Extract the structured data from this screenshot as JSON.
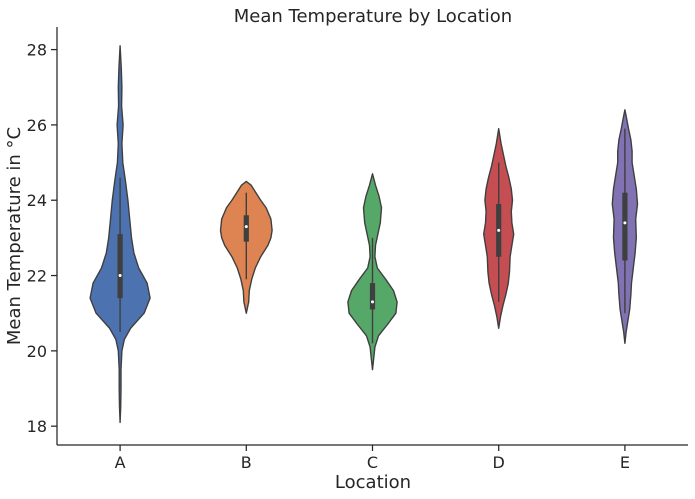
{
  "chart_data": {
    "type": "violin",
    "title": "Mean Temperature by Location",
    "xlabel": "Location",
    "ylabel": "Mean Temperature in °C",
    "categories": [
      "A",
      "B",
      "C",
      "D",
      "E"
    ],
    "ylim": [
      17.5,
      28.6
    ],
    "yticks": [
      18,
      20,
      22,
      24,
      26,
      28
    ],
    "grid": false,
    "colors": [
      "#4c72b0",
      "#dd8452",
      "#55a868",
      "#c44e52",
      "#8172b3"
    ],
    "violins": [
      {
        "category": "A",
        "min": 18.1,
        "max": 28.1,
        "q1": 21.4,
        "median": 22.0,
        "q3": 23.1,
        "whisker": [
          20.5,
          24.6
        ],
        "density": [
          [
            18.1,
            0.0
          ],
          [
            18.5,
            0.02
          ],
          [
            19.0,
            0.03
          ],
          [
            19.5,
            0.03
          ],
          [
            20.0,
            0.06
          ],
          [
            20.3,
            0.14
          ],
          [
            20.6,
            0.35
          ],
          [
            21.0,
            0.8
          ],
          [
            21.4,
            1.0
          ],
          [
            21.8,
            0.9
          ],
          [
            22.2,
            0.62
          ],
          [
            22.6,
            0.46
          ],
          [
            23.0,
            0.38
          ],
          [
            23.5,
            0.32
          ],
          [
            24.0,
            0.26
          ],
          [
            24.5,
            0.18
          ],
          [
            25.0,
            0.09
          ],
          [
            25.5,
            0.06
          ],
          [
            26.0,
            0.1
          ],
          [
            26.5,
            0.05
          ],
          [
            27.0,
            0.06
          ],
          [
            27.5,
            0.04
          ],
          [
            28.1,
            0.0
          ]
        ]
      },
      {
        "category": "B",
        "min": 21.0,
        "max": 24.5,
        "q1": 22.9,
        "median": 23.3,
        "q3": 23.6,
        "whisker": [
          21.9,
          24.2
        ],
        "density": [
          [
            21.0,
            0.0
          ],
          [
            21.3,
            0.08
          ],
          [
            21.6,
            0.1
          ],
          [
            21.9,
            0.18
          ],
          [
            22.2,
            0.3
          ],
          [
            22.5,
            0.48
          ],
          [
            22.8,
            0.72
          ],
          [
            23.0,
            0.82
          ],
          [
            23.2,
            0.86
          ],
          [
            23.5,
            0.82
          ],
          [
            23.8,
            0.66
          ],
          [
            24.0,
            0.48
          ],
          [
            24.2,
            0.32
          ],
          [
            24.4,
            0.16
          ],
          [
            24.5,
            0.0
          ]
        ]
      },
      {
        "category": "C",
        "min": 19.5,
        "max": 24.7,
        "q1": 21.1,
        "median": 21.3,
        "q3": 21.8,
        "whisker": [
          20.2,
          23.0
        ],
        "density": [
          [
            19.5,
            0.0
          ],
          [
            19.8,
            0.04
          ],
          [
            20.1,
            0.08
          ],
          [
            20.4,
            0.2
          ],
          [
            20.7,
            0.5
          ],
          [
            21.0,
            0.78
          ],
          [
            21.3,
            0.82
          ],
          [
            21.6,
            0.7
          ],
          [
            21.9,
            0.44
          ],
          [
            22.2,
            0.16
          ],
          [
            22.5,
            0.08
          ],
          [
            22.8,
            0.1
          ],
          [
            23.1,
            0.18
          ],
          [
            23.4,
            0.26
          ],
          [
            23.8,
            0.3
          ],
          [
            24.1,
            0.22
          ],
          [
            24.4,
            0.1
          ],
          [
            24.7,
            0.0
          ]
        ]
      },
      {
        "category": "D",
        "min": 20.6,
        "max": 25.9,
        "q1": 22.5,
        "median": 23.2,
        "q3": 23.9,
        "whisker": [
          21.3,
          25.0
        ],
        "density": [
          [
            20.6,
            0.0
          ],
          [
            20.9,
            0.06
          ],
          [
            21.2,
            0.14
          ],
          [
            21.5,
            0.24
          ],
          [
            21.8,
            0.32
          ],
          [
            22.1,
            0.36
          ],
          [
            22.5,
            0.38
          ],
          [
            22.8,
            0.44
          ],
          [
            23.1,
            0.5
          ],
          [
            23.4,
            0.44
          ],
          [
            23.7,
            0.42
          ],
          [
            24.0,
            0.46
          ],
          [
            24.3,
            0.42
          ],
          [
            24.6,
            0.34
          ],
          [
            24.9,
            0.24
          ],
          [
            25.2,
            0.16
          ],
          [
            25.5,
            0.08
          ],
          [
            25.9,
            0.0
          ]
        ]
      },
      {
        "category": "E",
        "min": 20.2,
        "max": 26.4,
        "q1": 22.4,
        "median": 23.4,
        "q3": 24.2,
        "whisker": [
          21.0,
          25.9
        ],
        "density": [
          [
            20.2,
            0.0
          ],
          [
            20.5,
            0.04
          ],
          [
            20.8,
            0.1
          ],
          [
            21.1,
            0.16
          ],
          [
            21.5,
            0.2
          ],
          [
            21.8,
            0.22
          ],
          [
            22.2,
            0.28
          ],
          [
            22.6,
            0.34
          ],
          [
            23.0,
            0.38
          ],
          [
            23.5,
            0.36
          ],
          [
            23.9,
            0.42
          ],
          [
            24.3,
            0.38
          ],
          [
            24.7,
            0.3
          ],
          [
            25.0,
            0.24
          ],
          [
            25.3,
            0.24
          ],
          [
            25.6,
            0.2
          ],
          [
            25.9,
            0.12
          ],
          [
            26.2,
            0.05
          ],
          [
            26.4,
            0.0
          ]
        ]
      }
    ]
  }
}
